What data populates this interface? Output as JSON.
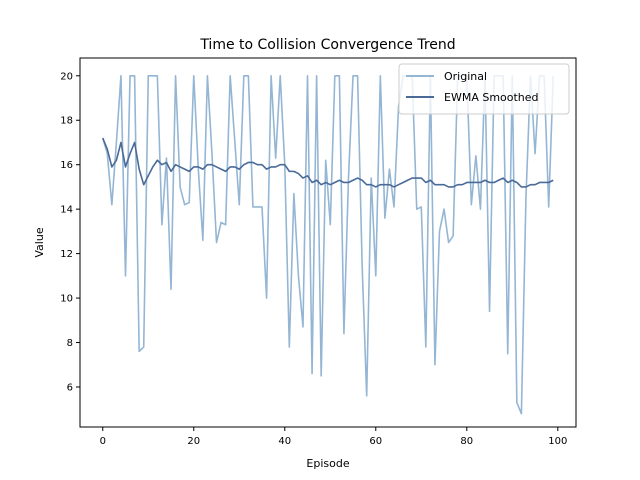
{
  "chart_data": {
    "type": "line",
    "title": "Time to Collision Convergence Trend",
    "xlabel": "Episode",
    "ylabel": "Value",
    "xlim": [
      -5,
      104
    ],
    "ylim": [
      4.2,
      20.8
    ],
    "xticks": [
      0,
      20,
      40,
      60,
      80,
      100
    ],
    "yticks": [
      6,
      8,
      10,
      12,
      14,
      16,
      18,
      20
    ],
    "legend_position": "top-right",
    "grid": false,
    "series": [
      {
        "name": "Original",
        "color": "#94b6d4",
        "x": [
          0,
          1,
          2,
          3,
          4,
          5,
          6,
          7,
          8,
          9,
          10,
          11,
          12,
          13,
          14,
          15,
          16,
          17,
          18,
          19,
          20,
          21,
          22,
          23,
          24,
          25,
          26,
          27,
          28,
          29,
          30,
          31,
          32,
          33,
          34,
          35,
          36,
          37,
          38,
          39,
          40,
          41,
          42,
          43,
          44,
          45,
          46,
          47,
          48,
          49,
          50,
          51,
          52,
          53,
          54,
          55,
          56,
          57,
          58,
          59,
          60,
          61,
          62,
          63,
          64,
          65,
          66,
          67,
          68,
          69,
          70,
          71,
          72,
          73,
          74,
          75,
          76,
          77,
          78,
          79,
          80,
          81,
          82,
          83,
          84,
          85,
          86,
          87,
          88,
          89,
          90,
          91,
          92,
          93,
          94,
          95,
          96,
          97,
          98,
          99
        ],
        "values": [
          17.2,
          16.5,
          14.2,
          17.0,
          20.0,
          11.0,
          20.0,
          20.0,
          7.6,
          7.8,
          20.0,
          20.0,
          20.0,
          13.3,
          16.3,
          10.4,
          20.0,
          15.0,
          14.2,
          14.3,
          20.0,
          15.8,
          12.6,
          20.0,
          16.5,
          12.5,
          13.4,
          13.3,
          20.0,
          17.1,
          14.2,
          20.0,
          20.0,
          14.1,
          14.1,
          14.1,
          10.0,
          20.0,
          16.3,
          20.0,
          16.0,
          7.8,
          14.7,
          11.0,
          8.7,
          20.0,
          6.6,
          20.0,
          6.5,
          16.2,
          13.3,
          20.0,
          20.0,
          8.4,
          15.4,
          20.0,
          20.0,
          11.5,
          5.6,
          15.4,
          11.0,
          20.0,
          13.6,
          15.8,
          14.1,
          18.6,
          20.0,
          20.0,
          20.0,
          14.0,
          14.1,
          7.8,
          20.0,
          7.0,
          13.0,
          14.0,
          12.5,
          12.8,
          20.0,
          20.0,
          20.0,
          14.2,
          16.4,
          14.0,
          20.0,
          9.4,
          20.0,
          20.0,
          20.0,
          7.5,
          20.0,
          5.3,
          4.8,
          14.5,
          20.0,
          16.5,
          20.0,
          20.0,
          14.1,
          20.0
        ]
      },
      {
        "name": "EWMA Smoothed",
        "color": "#4a6a98",
        "x": [
          0,
          1,
          2,
          3,
          4,
          5,
          6,
          7,
          8,
          9,
          10,
          11,
          12,
          13,
          14,
          15,
          16,
          17,
          18,
          19,
          20,
          21,
          22,
          23,
          24,
          25,
          26,
          27,
          28,
          29,
          30,
          31,
          32,
          33,
          34,
          35,
          36,
          37,
          38,
          39,
          40,
          41,
          42,
          43,
          44,
          45,
          46,
          47,
          48,
          49,
          50,
          51,
          52,
          53,
          54,
          55,
          56,
          57,
          58,
          59,
          60,
          61,
          62,
          63,
          64,
          65,
          66,
          67,
          68,
          69,
          70,
          71,
          72,
          73,
          74,
          75,
          76,
          77,
          78,
          79,
          80,
          81,
          82,
          83,
          84,
          85,
          86,
          87,
          88,
          89,
          90,
          91,
          92,
          93,
          94,
          95,
          96,
          97,
          98,
          99
        ],
        "values": [
          17.2,
          16.7,
          15.9,
          16.2,
          17.0,
          15.9,
          16.5,
          17.0,
          15.8,
          15.1,
          15.5,
          15.9,
          16.2,
          16.0,
          16.1,
          15.7,
          16.0,
          15.9,
          15.8,
          15.7,
          15.9,
          15.9,
          15.8,
          16.0,
          16.0,
          15.9,
          15.8,
          15.7,
          15.9,
          15.9,
          15.8,
          16.0,
          16.1,
          16.1,
          16.0,
          16.0,
          15.8,
          15.9,
          15.9,
          16.0,
          16.0,
          15.7,
          15.7,
          15.6,
          15.4,
          15.5,
          15.2,
          15.3,
          15.1,
          15.2,
          15.1,
          15.2,
          15.3,
          15.2,
          15.2,
          15.3,
          15.4,
          15.3,
          15.1,
          15.1,
          15.0,
          15.1,
          15.1,
          15.1,
          15.0,
          15.1,
          15.2,
          15.3,
          15.4,
          15.4,
          15.4,
          15.2,
          15.3,
          15.1,
          15.1,
          15.1,
          15.0,
          15.0,
          15.1,
          15.1,
          15.2,
          15.2,
          15.2,
          15.2,
          15.3,
          15.2,
          15.2,
          15.3,
          15.4,
          15.2,
          15.3,
          15.2,
          15.0,
          15.0,
          15.1,
          15.1,
          15.2,
          15.2,
          15.2,
          15.3
        ]
      }
    ]
  }
}
